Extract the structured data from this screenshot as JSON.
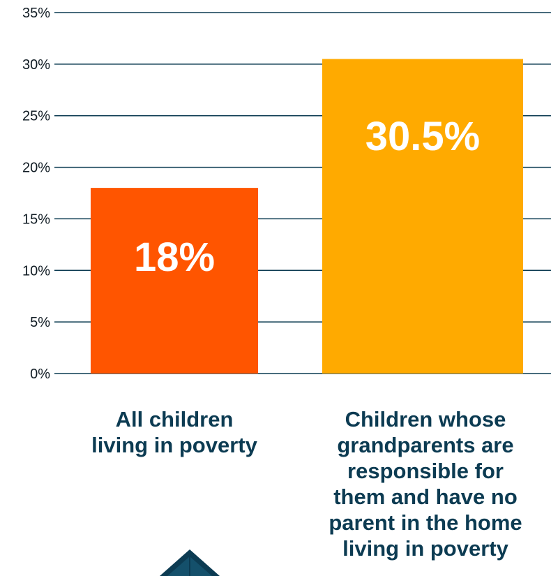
{
  "chart_data": {
    "type": "bar",
    "categories": [
      "All children living in poverty",
      "Children whose grandparents are responsible for them and have no parent in the home living in poverty"
    ],
    "values": [
      18,
      30.5
    ],
    "data_labels": [
      "18%",
      "30.5%"
    ],
    "ylim": [
      0,
      35
    ],
    "yticks": [
      0,
      5,
      10,
      15,
      20,
      25,
      30,
      35
    ],
    "ytick_labels": [
      "0%",
      "5%",
      "10%",
      "15%",
      "20%",
      "25%",
      "30%",
      "35%"
    ],
    "grid": true,
    "colors": [
      "#ff5500",
      "#ffaa00"
    ],
    "title": "",
    "xlabel": "",
    "ylabel": ""
  },
  "category_labels": [
    {
      "lines": [
        "All children",
        "living in poverty"
      ]
    },
    {
      "lines": [
        "Children whose",
        "grandparents are",
        "responsible for",
        "them and have no",
        "parent in the home",
        "living in poverty"
      ]
    }
  ],
  "colors": {
    "grid": "#0c3b52",
    "category_text": "#0c3b52",
    "logo": "#0c3b52"
  },
  "logo": {
    "icon": "house-roof-logo-icon"
  }
}
